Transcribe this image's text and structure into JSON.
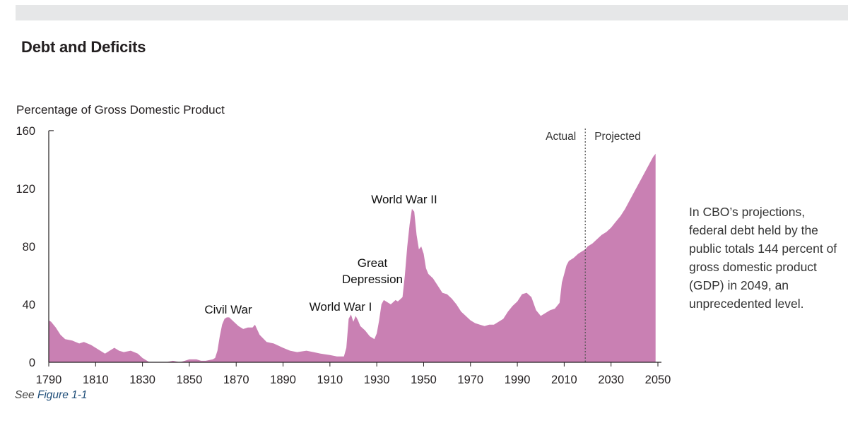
{
  "header": {
    "title": "Debt and Deficits"
  },
  "footnote": {
    "prefix": "See ",
    "ref": "Figure 1-1"
  },
  "side_note": "In CBO’s projections, federal debt held by the public totals 144 percent of gross domestic product (GDP) in 2049, an unprecedented level.",
  "colors": {
    "area": "#c980b3",
    "axis": "#231f20",
    "divider": "#555555",
    "top_bar": "#e6e7e8"
  },
  "chart_data": {
    "type": "area",
    "title": "Debt and Deficits",
    "ylabel": "Percentage of Gross Domestic Product",
    "xlabel": "",
    "xlim": [
      1790,
      2050
    ],
    "ylim": [
      0,
      160
    ],
    "xticks": [
      1790,
      1810,
      1830,
      1850,
      1870,
      1890,
      1910,
      1930,
      1950,
      1970,
      1990,
      2010,
      2030,
      2050
    ],
    "yticks": [
      0,
      40,
      80,
      120,
      160
    ],
    "series": [
      {
        "name": "Federal debt held by the public",
        "x": [
          1790,
          1791,
          1793,
          1795,
          1797,
          1800,
          1803,
          1805,
          1808,
          1810,
          1812,
          1814,
          1816,
          1818,
          1820,
          1822,
          1825,
          1828,
          1830,
          1833,
          1835,
          1838,
          1840,
          1843,
          1846,
          1850,
          1853,
          1855,
          1857,
          1860,
          1861,
          1862,
          1863,
          1864,
          1865,
          1866,
          1867,
          1869,
          1871,
          1873,
          1875,
          1877,
          1878,
          1880,
          1883,
          1886,
          1890,
          1893,
          1896,
          1900,
          1903,
          1906,
          1910,
          1913,
          1916,
          1917,
          1918,
          1919,
          1920,
          1921,
          1922,
          1923,
          1925,
          1927,
          1929,
          1930,
          1931,
          1932,
          1933,
          1934,
          1936,
          1938,
          1939,
          1941,
          1942,
          1943,
          1944,
          1945,
          1946,
          1947,
          1948,
          1949,
          1950,
          1951,
          1952,
          1954,
          1956,
          1958,
          1960,
          1962,
          1964,
          1966,
          1968,
          1970,
          1972,
          1974,
          1976,
          1978,
          1980,
          1982,
          1984,
          1986,
          1988,
          1990,
          1992,
          1994,
          1996,
          1998,
          2000,
          2002,
          2004,
          2006,
          2008,
          2009,
          2010,
          2011,
          2012,
          2014,
          2016,
          2018,
          2019,
          2020,
          2022,
          2024,
          2026,
          2028,
          2030,
          2032,
          2034,
          2036,
          2038,
          2040,
          2042,
          2044,
          2046,
          2048,
          2049
        ],
        "values": [
          29,
          28,
          24,
          19,
          16,
          15,
          13,
          14,
          12,
          10,
          8,
          6,
          8,
          10,
          8,
          7,
          8,
          6,
          3,
          0,
          0,
          0,
          0,
          1,
          0,
          2,
          2,
          1,
          1,
          2,
          3,
          8,
          18,
          26,
          30,
          31,
          31,
          28,
          25,
          23,
          24,
          24,
          26,
          19,
          14,
          13,
          10,
          8,
          7,
          8,
          7,
          6,
          5,
          4,
          4,
          10,
          30,
          33,
          28,
          32,
          29,
          25,
          22,
          18,
          16,
          20,
          29,
          40,
          43,
          42,
          40,
          43,
          42,
          45,
          60,
          80,
          95,
          106,
          104,
          88,
          78,
          80,
          75,
          65,
          61,
          58,
          53,
          48,
          47,
          44,
          40,
          35,
          32,
          29,
          27,
          26,
          25,
          26,
          26,
          28,
          30,
          35,
          39,
          42,
          47,
          48,
          45,
          36,
          32,
          34,
          36,
          37,
          41,
          55,
          61,
          67,
          70,
          72,
          75,
          77,
          78,
          80,
          82,
          85,
          88,
          90,
          93,
          97,
          101,
          106,
          112,
          118,
          124,
          130,
          136,
          142,
          144
        ]
      }
    ],
    "annotations": [
      {
        "text": "Civil War",
        "year": 1865,
        "value": 31
      },
      {
        "text": "World War I",
        "year": 1919,
        "value": 33
      },
      {
        "text": "Great",
        "year": 1930,
        "value": 43
      },
      {
        "text": "Depression",
        "year": 1930,
        "value": 43
      },
      {
        "text": "World War II",
        "year": 1946,
        "value": 106
      }
    ],
    "divider": {
      "year": 2019,
      "left_label": "Actual",
      "right_label": "Projected"
    }
  }
}
